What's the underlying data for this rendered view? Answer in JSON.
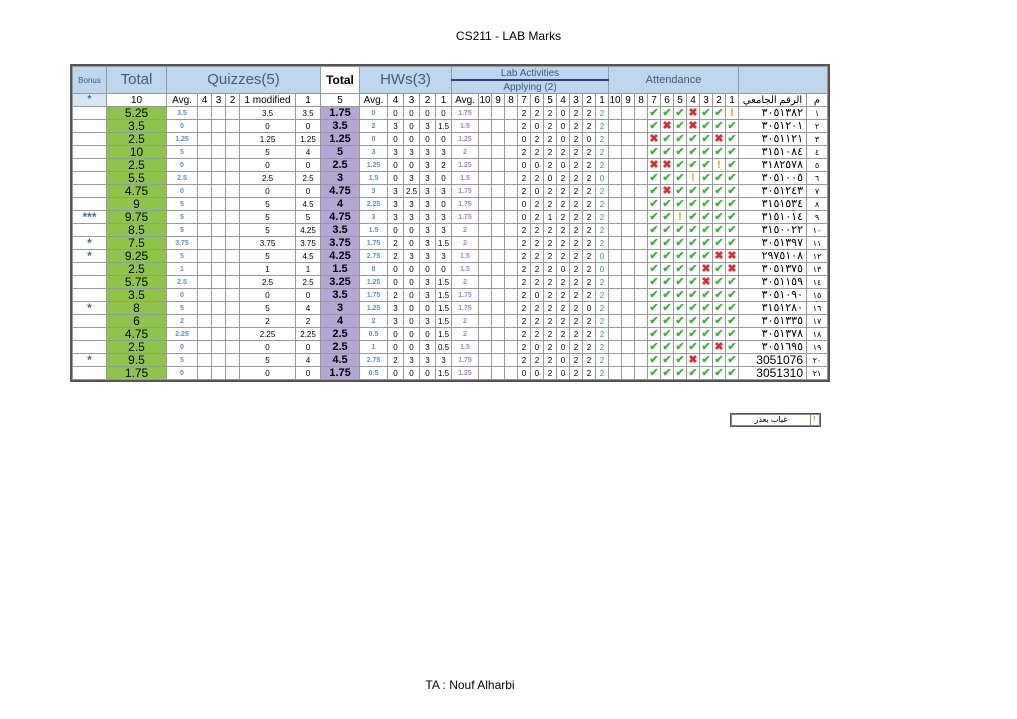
{
  "title": "CS211 - LAB Marks",
  "footer": "TA : Nouf Alharbi",
  "header": {
    "bonus": "Bonus",
    "total": "Total",
    "quizzes": "Quizzes(5)",
    "total2": "Total",
    "hws": "HWs(3)",
    "lab_activities": "Lab Activities",
    "applying": "Applying (2)",
    "attendance": "Attendance"
  },
  "subheader": {
    "star": "*",
    "max_total": "10",
    "quiz_avg": "Avg.",
    "quiz_cols": [
      "4",
      "3",
      "2",
      "1 modified",
      "1"
    ],
    "max_total2": "5",
    "hw_avg": "Avg.",
    "hw_cols": [
      "4",
      "3",
      "2",
      "1"
    ],
    "lab_avg": "Avg.",
    "lab_cols": [
      "10",
      "9",
      "8",
      "7",
      "6",
      "5",
      "4",
      "3",
      "2",
      "1"
    ],
    "att_cols": [
      "10",
      "9",
      "8",
      "7",
      "6",
      "5",
      "4",
      "3",
      "2",
      "1"
    ],
    "student_id": "الرقم الجامعي",
    "num": "م"
  },
  "rows": [
    {
      "bonus": "",
      "total": "5.25",
      "qavg": "3.5",
      "q": [
        "",
        "",
        "",
        "3.5",
        "3.5"
      ],
      "total2": "1.75",
      "havg": "0",
      "h": [
        "0",
        "0",
        "0",
        "0"
      ],
      "lavg": "1.75",
      "l": [
        "",
        "",
        "",
        "2",
        "2",
        "2",
        "0",
        "2",
        "2",
        "2"
      ],
      "att": [
        "",
        "",
        "",
        "p",
        "p",
        "p",
        "a",
        "p",
        "p",
        "e"
      ],
      "id": "٣٠٥١٣٨٢",
      "n": "١"
    },
    {
      "bonus": "",
      "total": "3.5",
      "qavg": "0",
      "q": [
        "",
        "",
        "",
        "0",
        "0"
      ],
      "total2": "3.5",
      "havg": "2",
      "h": [
        "3",
        "0",
        "3",
        "1.5"
      ],
      "lavg": "1.5",
      "l": [
        "",
        "",
        "",
        "2",
        "0",
        "2",
        "0",
        "2",
        "2",
        "2"
      ],
      "att": [
        "",
        "",
        "",
        "p",
        "a",
        "p",
        "a",
        "p",
        "p",
        "p"
      ],
      "id": "٣٠٥١٢٠١",
      "n": "٢"
    },
    {
      "bonus": "",
      "total": "2.5",
      "qavg": "1.25",
      "q": [
        "",
        "",
        "",
        "1.25",
        "1.25"
      ],
      "total2": "1.25",
      "havg": "0",
      "h": [
        "0",
        "0",
        "0",
        "0"
      ],
      "lavg": "1.25",
      "l": [
        "",
        "",
        "",
        "0",
        "2",
        "2",
        "0",
        "2",
        "0",
        "2"
      ],
      "att": [
        "",
        "",
        "",
        "a",
        "p",
        "p",
        "p",
        "p",
        "a",
        "p"
      ],
      "id": "٣٠٥١١٢١",
      "n": "٣"
    },
    {
      "bonus": "",
      "total": "10",
      "qavg": "5",
      "q": [
        "",
        "",
        "",
        "5",
        "4"
      ],
      "total2": "5",
      "havg": "3",
      "h": [
        "3",
        "3",
        "3",
        "3"
      ],
      "lavg": "2",
      "l": [
        "",
        "",
        "",
        "2",
        "2",
        "2",
        "2",
        "2",
        "2",
        "2"
      ],
      "att": [
        "",
        "",
        "",
        "p",
        "p",
        "p",
        "p",
        "p",
        "p",
        "p"
      ],
      "id": "٣١٥١٠٨٤",
      "n": "٤"
    },
    {
      "bonus": "",
      "total": "2.5",
      "qavg": "0",
      "q": [
        "",
        "",
        "",
        "0",
        "0"
      ],
      "total2": "2.5",
      "havg": "1.25",
      "h": [
        "0",
        "0",
        "3",
        "2"
      ],
      "lavg": "1.25",
      "l": [
        "",
        "",
        "",
        "0",
        "0",
        "2",
        "0",
        "2",
        "2",
        "2"
      ],
      "att": [
        "",
        "",
        "",
        "a",
        "a",
        "p",
        "p",
        "p",
        "e",
        "p"
      ],
      "id": "٣١٨٢٥٧٨",
      "n": "٥"
    },
    {
      "bonus": "",
      "total": "5.5",
      "qavg": "2.5",
      "q": [
        "",
        "",
        "",
        "2.5",
        "2.5"
      ],
      "total2": "3",
      "havg": "1.5",
      "h": [
        "0",
        "3",
        "3",
        "0"
      ],
      "lavg": "1.5",
      "l": [
        "",
        "",
        "",
        "2",
        "2",
        "0",
        "2",
        "2",
        "2",
        "0"
      ],
      "att": [
        "",
        "",
        "",
        "p",
        "p",
        "p",
        "e",
        "p",
        "p",
        "p"
      ],
      "id": "٣٠٥١٠٠٥",
      "n": "٦"
    },
    {
      "bonus": "",
      "total": "4.75",
      "qavg": "0",
      "q": [
        "",
        "",
        "",
        "0",
        "0"
      ],
      "total2": "4.75",
      "havg": "3",
      "h": [
        "3",
        "2.5",
        "3",
        "3"
      ],
      "lavg": "1.75",
      "l": [
        "",
        "",
        "",
        "2",
        "0",
        "2",
        "2",
        "2",
        "2",
        "2"
      ],
      "att": [
        "",
        "",
        "",
        "p",
        "a",
        "p",
        "p",
        "p",
        "p",
        "p"
      ],
      "id": "٣٠٥١٢٤٣",
      "n": "٧"
    },
    {
      "bonus": "",
      "total": "9",
      "qavg": "5",
      "q": [
        "",
        "",
        "",
        "5",
        "4.5"
      ],
      "total2": "4",
      "havg": "2.25",
      "h": [
        "3",
        "3",
        "3",
        "0"
      ],
      "lavg": "1.75",
      "l": [
        "",
        "",
        "",
        "0",
        "2",
        "2",
        "2",
        "2",
        "2",
        "2"
      ],
      "att": [
        "",
        "",
        "",
        "p",
        "p",
        "p",
        "p",
        "p",
        "p",
        "p"
      ],
      "id": "٣١٥١٥٣٤",
      "n": "٨"
    },
    {
      "bonus": "***",
      "total": "9.75",
      "qavg": "5",
      "q": [
        "",
        "",
        "",
        "5",
        "5"
      ],
      "total2": "4.75",
      "havg": "3",
      "h": [
        "3",
        "3",
        "3",
        "3"
      ],
      "lavg": "1.75",
      "l": [
        "",
        "",
        "",
        "0",
        "2",
        "1",
        "2",
        "2",
        "2",
        "2"
      ],
      "att": [
        "",
        "",
        "",
        "p",
        "p",
        "e",
        "p",
        "p",
        "p",
        "p"
      ],
      "id": "٣١٥١٠١٤",
      "n": "٩"
    },
    {
      "bonus": "",
      "total": "8.5",
      "qavg": "5",
      "q": [
        "",
        "",
        "",
        "5",
        "4.25"
      ],
      "total2": "3.5",
      "havg": "1.5",
      "h": [
        "0",
        "0",
        "3",
        "3"
      ],
      "lavg": "2",
      "l": [
        "",
        "",
        "",
        "2",
        "2",
        "2",
        "2",
        "2",
        "2",
        "2"
      ],
      "att": [
        "",
        "",
        "",
        "p",
        "p",
        "p",
        "p",
        "p",
        "p",
        "p"
      ],
      "id": "٣١٥٠٠٢٢",
      "n": "١٠"
    },
    {
      "bonus": "*",
      "total": "7.5",
      "qavg": "3.75",
      "q": [
        "",
        "",
        "",
        "3.75",
        "3.75"
      ],
      "total2": "3.75",
      "havg": "1.75",
      "h": [
        "2",
        "0",
        "3",
        "1.5"
      ],
      "lavg": "2",
      "l": [
        "",
        "",
        "",
        "2",
        "2",
        "2",
        "2",
        "2",
        "2",
        "2"
      ],
      "att": [
        "",
        "",
        "",
        "p",
        "p",
        "p",
        "p",
        "p",
        "p",
        "p"
      ],
      "id": "٣٠٥١٣٩٧",
      "n": "١١"
    },
    {
      "bonus": "*",
      "total": "9.25",
      "qavg": "5",
      "q": [
        "",
        "",
        "",
        "5",
        "4.5"
      ],
      "total2": "4.25",
      "havg": "2.75",
      "h": [
        "2",
        "3",
        "3",
        "3"
      ],
      "lavg": "1.5",
      "l": [
        "",
        "",
        "",
        "2",
        "2",
        "2",
        "2",
        "2",
        "2",
        "0"
      ],
      "att": [
        "",
        "",
        "",
        "p",
        "p",
        "p",
        "p",
        "p",
        "a",
        "a"
      ],
      "id": "٢٩٧٥١٠٨",
      "n": "١٢"
    },
    {
      "bonus": "",
      "total": "2.5",
      "qavg": "1",
      "q": [
        "",
        "",
        "",
        "1",
        "1"
      ],
      "total2": "1.5",
      "havg": "0",
      "h": [
        "0",
        "0",
        "0",
        "0"
      ],
      "lavg": "1.5",
      "l": [
        "",
        "",
        "",
        "2",
        "2",
        "2",
        "0",
        "2",
        "2",
        "0"
      ],
      "att": [
        "",
        "",
        "",
        "p",
        "p",
        "p",
        "p",
        "a",
        "p",
        "a"
      ],
      "id": "٣٠٥١٣٧٥",
      "n": "١٣"
    },
    {
      "bonus": "",
      "total": "5.75",
      "qavg": "2.5",
      "q": [
        "",
        "",
        "",
        "2.5",
        "2.5"
      ],
      "total2": "3.25",
      "havg": "1.25",
      "h": [
        "0",
        "0",
        "3",
        "1.5"
      ],
      "lavg": "2",
      "l": [
        "",
        "",
        "",
        "2",
        "2",
        "2",
        "2",
        "2",
        "2",
        "2"
      ],
      "att": [
        "",
        "",
        "",
        "p",
        "p",
        "p",
        "p",
        "a",
        "p",
        "p"
      ],
      "id": "٣٠٥١١٥٩",
      "n": "١٤"
    },
    {
      "bonus": "",
      "total": "3.5",
      "qavg": "0",
      "q": [
        "",
        "",
        "",
        "0",
        "0"
      ],
      "total2": "3.5",
      "havg": "1.75",
      "h": [
        "2",
        "0",
        "3",
        "1.5"
      ],
      "lavg": "1.75",
      "l": [
        "",
        "",
        "",
        "2",
        "0",
        "2",
        "2",
        "2",
        "2",
        "2"
      ],
      "att": [
        "",
        "",
        "",
        "p",
        "p",
        "p",
        "p",
        "p",
        "p",
        "p"
      ],
      "id": "٣٠٥١٠٩٠",
      "n": "١٥"
    },
    {
      "bonus": "*",
      "total": "8",
      "qavg": "5",
      "q": [
        "",
        "",
        "",
        "5",
        "4"
      ],
      "total2": "3",
      "havg": "1.25",
      "h": [
        "3",
        "0",
        "0",
        "1.5"
      ],
      "lavg": "1.75",
      "l": [
        "",
        "",
        "",
        "2",
        "2",
        "2",
        "2",
        "2",
        "0",
        "2"
      ],
      "att": [
        "",
        "",
        "",
        "p",
        "p",
        "p",
        "p",
        "p",
        "p",
        "p"
      ],
      "id": "٣١٥١٢٨٠",
      "n": "١٦"
    },
    {
      "bonus": "",
      "total": "6",
      "qavg": "2",
      "q": [
        "",
        "",
        "",
        "2",
        "2"
      ],
      "total2": "4",
      "havg": "2",
      "h": [
        "3",
        "0",
        "3",
        "1.5"
      ],
      "lavg": "2",
      "l": [
        "",
        "",
        "",
        "2",
        "2",
        "2",
        "2",
        "2",
        "2",
        "2"
      ],
      "att": [
        "",
        "",
        "",
        "p",
        "p",
        "p",
        "p",
        "p",
        "p",
        "p"
      ],
      "id": "٣٠٥١٣٣٥",
      "n": "١٧"
    },
    {
      "bonus": "",
      "total": "4.75",
      "qavg": "2.25",
      "q": [
        "",
        "",
        "",
        "2.25",
        "2.25"
      ],
      "total2": "2.5",
      "havg": "0.5",
      "h": [
        "0",
        "0",
        "0",
        "1.5"
      ],
      "lavg": "2",
      "l": [
        "",
        "",
        "",
        "2",
        "2",
        "2",
        "2",
        "2",
        "2",
        "2"
      ],
      "att": [
        "",
        "",
        "",
        "p",
        "p",
        "p",
        "p",
        "p",
        "p",
        "p"
      ],
      "id": "٣٠٥١٣٧٨",
      "n": "١٨"
    },
    {
      "bonus": "",
      "total": "2.5",
      "qavg": "0",
      "q": [
        "",
        "",
        "",
        "0",
        "0"
      ],
      "total2": "2.5",
      "havg": "1",
      "h": [
        "0",
        "0",
        "3",
        "0.5"
      ],
      "lavg": "1.5",
      "l": [
        "",
        "",
        "",
        "2",
        "0",
        "2",
        "0",
        "2",
        "2",
        "2"
      ],
      "att": [
        "",
        "",
        "",
        "p",
        "p",
        "p",
        "p",
        "p",
        "a",
        "p"
      ],
      "id": "٣٠٥١٦٩٥",
      "n": "١٩"
    },
    {
      "bonus": "*",
      "total": "9.5",
      "qavg": "5",
      "q": [
        "",
        "",
        "",
        "5",
        "4"
      ],
      "total2": "4.5",
      "havg": "2.75",
      "h": [
        "2",
        "3",
        "3",
        "3"
      ],
      "lavg": "1.75",
      "l": [
        "",
        "",
        "",
        "2",
        "2",
        "2",
        "0",
        "2",
        "2",
        "2"
      ],
      "att": [
        "",
        "",
        "",
        "p",
        "p",
        "p",
        "a",
        "p",
        "p",
        "p"
      ],
      "id": "3051076",
      "n": "٢٠"
    },
    {
      "bonus": "",
      "total": "1.75",
      "qavg": "0",
      "q": [
        "",
        "",
        "",
        "0",
        "0"
      ],
      "total2": "1.75",
      "havg": "0.5",
      "h": [
        "0",
        "0",
        "0",
        "1.5"
      ],
      "lavg": "1.25",
      "l": [
        "",
        "",
        "",
        "0",
        "0",
        "2",
        "0",
        "2",
        "2",
        "2"
      ],
      "att": [
        "",
        "",
        "",
        "p",
        "p",
        "p",
        "p",
        "p",
        "p",
        "p"
      ],
      "id": "3051310",
      "n": "٢١"
    }
  ],
  "legend": {
    "label": "غياب بعذر"
  },
  "colors": {
    "total_green": "#8fc44a",
    "total2_purple": "#b4a7d6",
    "header_blue": "#bdd7ee",
    "present": "#3db23d",
    "absent": "#d83030",
    "excused": "#e0a020"
  }
}
